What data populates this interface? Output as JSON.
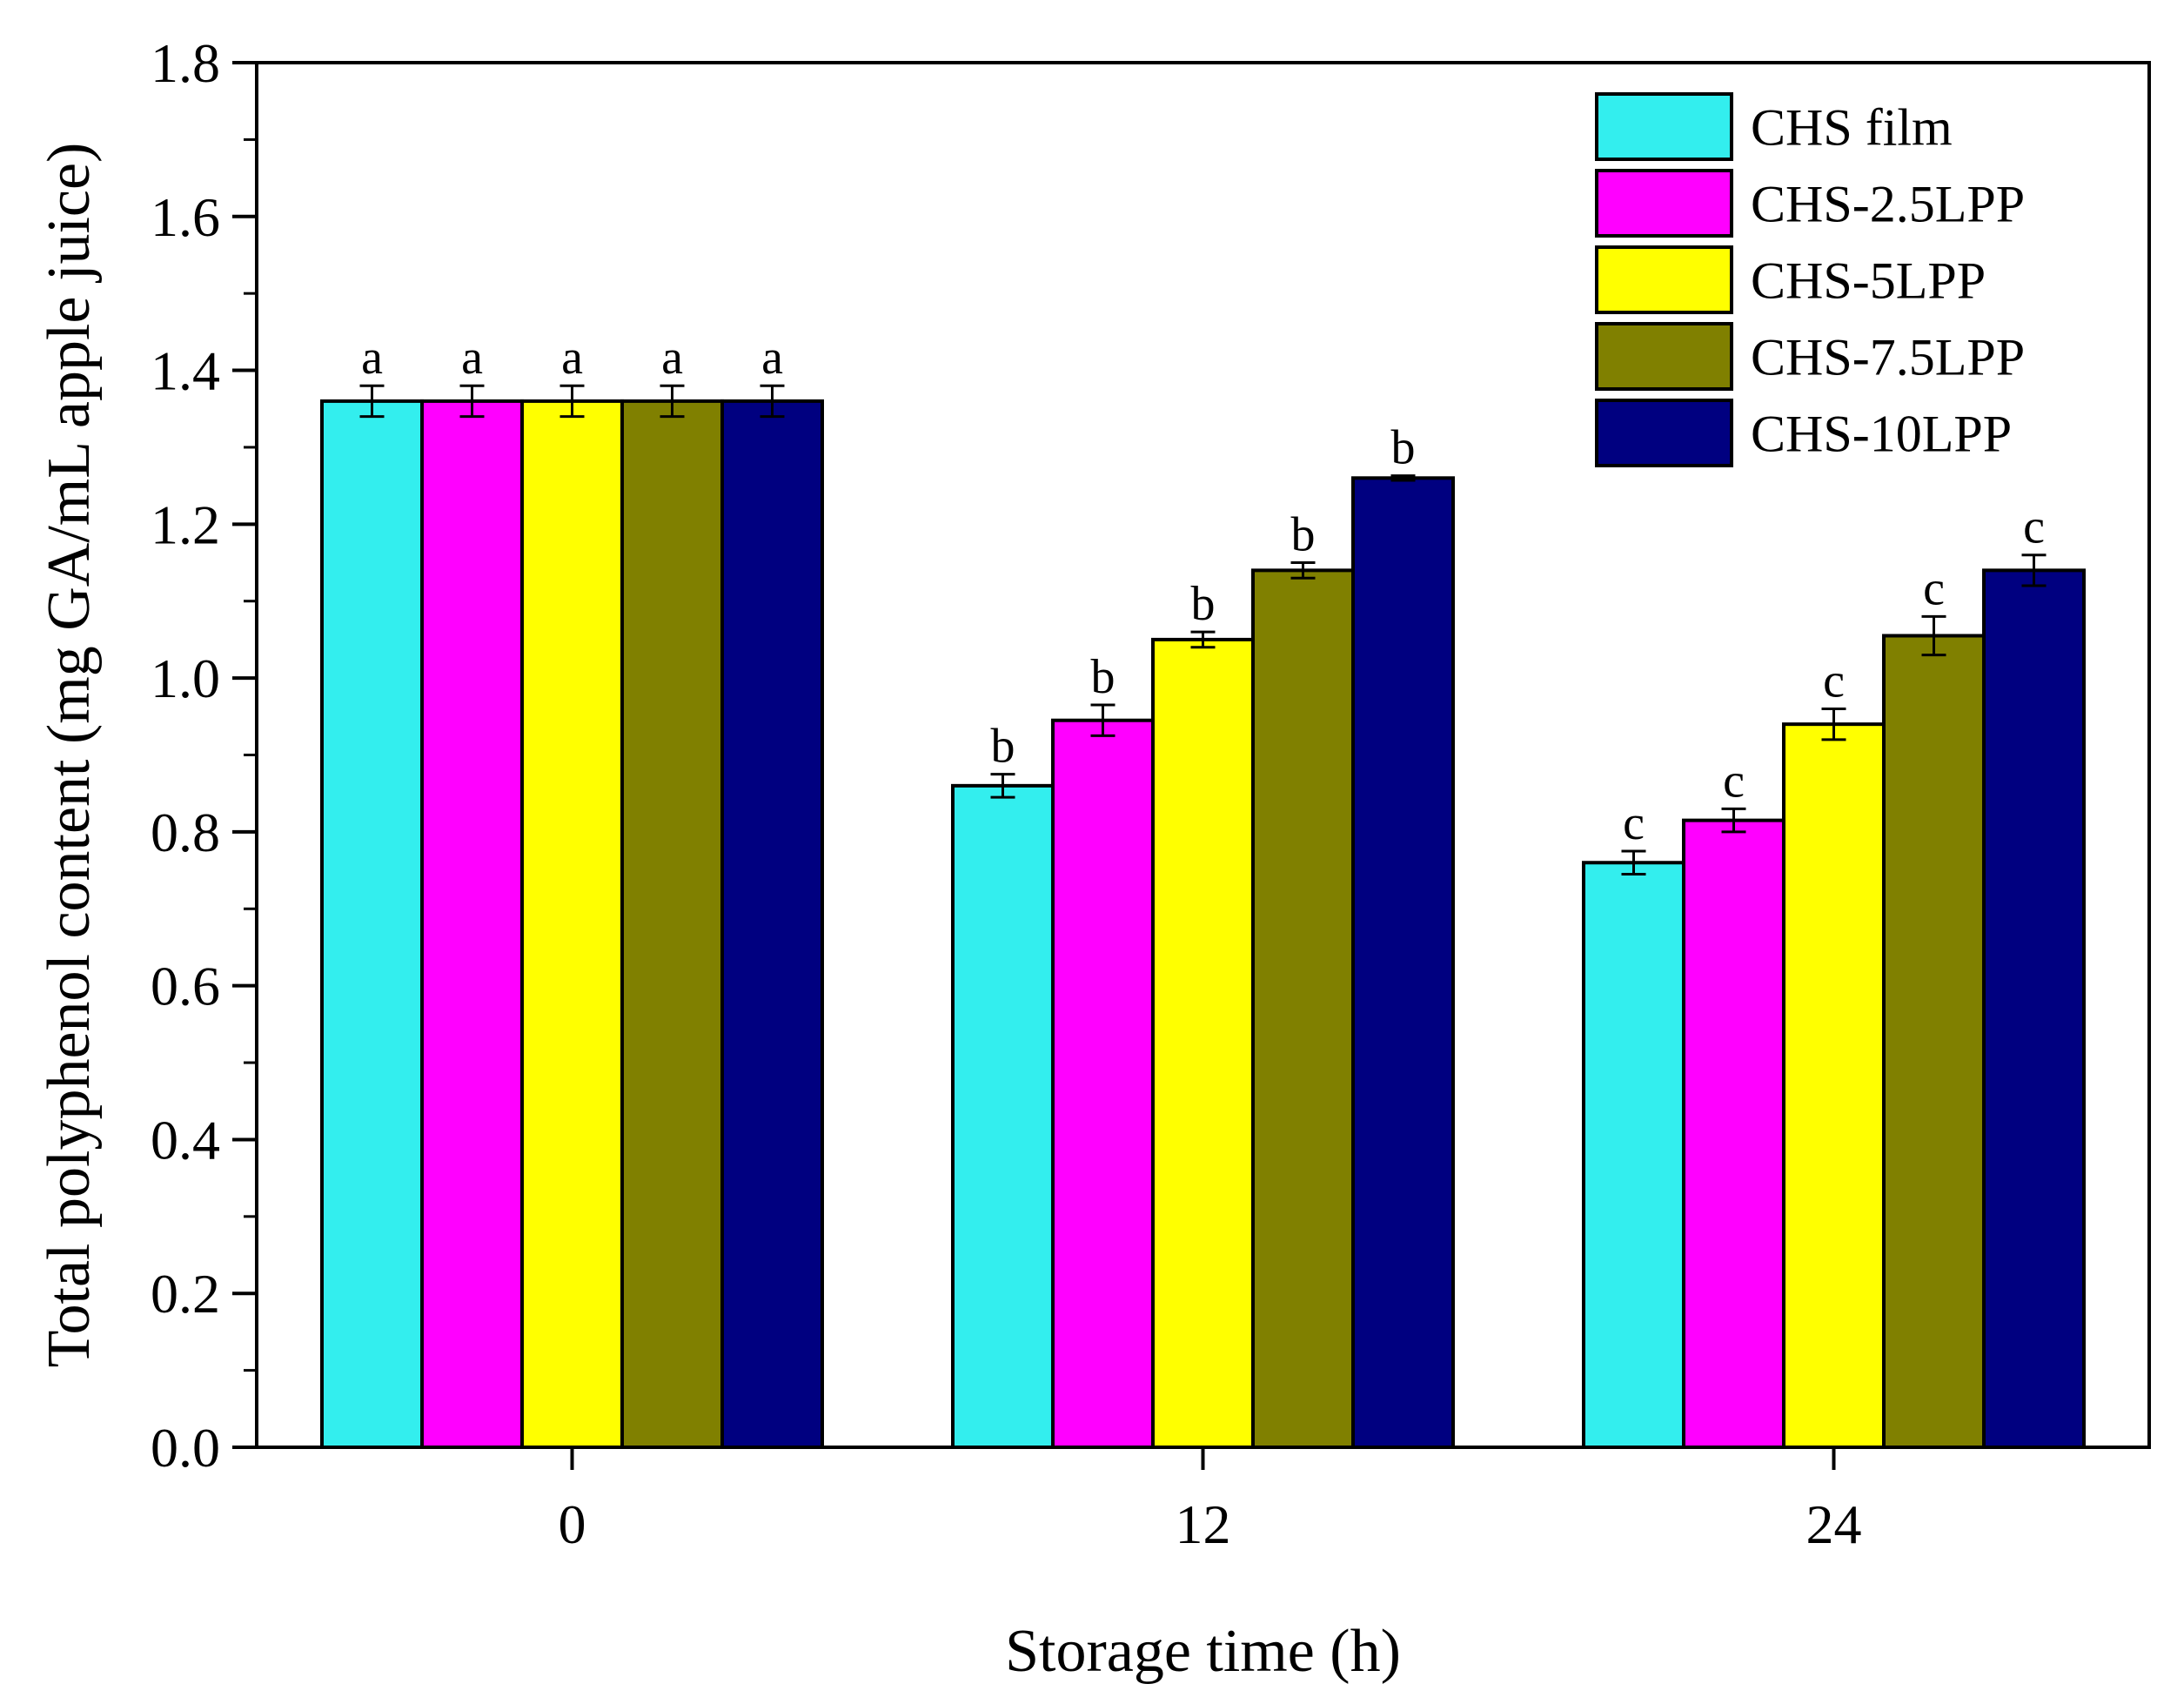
{
  "chart_data": {
    "type": "bar",
    "title": "",
    "xlabel": "Storage time (h)",
    "ylabel": "Total polyphenol content (mg GA/mL apple juice)",
    "categories": [
      "0",
      "12",
      "24"
    ],
    "ylim": [
      0,
      1.8
    ],
    "yticks": [
      "0.0",
      "0.2",
      "0.4",
      "0.6",
      "0.8",
      "1.0",
      "1.2",
      "1.4",
      "1.6",
      "1.8"
    ],
    "legend_position": "top-right",
    "series": [
      {
        "name": "CHS film",
        "color": "#33EEEE",
        "values": [
          1.36,
          0.86,
          0.76
        ],
        "errors": [
          0.02,
          0.015,
          0.015
        ],
        "labels": [
          "a",
          "b",
          "c"
        ]
      },
      {
        "name": "CHS-2.5LPP",
        "color": "#FF00FF",
        "values": [
          1.36,
          0.945,
          0.815
        ],
        "errors": [
          0.02,
          0.02,
          0.015
        ],
        "labels": [
          "a",
          "b",
          "c"
        ]
      },
      {
        "name": "CHS-5LPP",
        "color": "#FFFF00",
        "values": [
          1.36,
          1.05,
          0.94
        ],
        "errors": [
          0.02,
          0.01,
          0.02
        ],
        "labels": [
          "a",
          "b",
          "c"
        ]
      },
      {
        "name": "CHS-7.5LPP",
        "color": "#808000",
        "values": [
          1.36,
          1.14,
          1.055
        ],
        "errors": [
          0.02,
          0.01,
          0.025
        ],
        "labels": [
          "a",
          "b",
          "c"
        ]
      },
      {
        "name": "CHS-10LPP",
        "color": "#000080",
        "values": [
          1.36,
          1.26,
          1.14
        ],
        "errors": [
          0.02,
          0.003,
          0.02
        ],
        "labels": [
          "a",
          "b",
          "c"
        ]
      }
    ]
  }
}
